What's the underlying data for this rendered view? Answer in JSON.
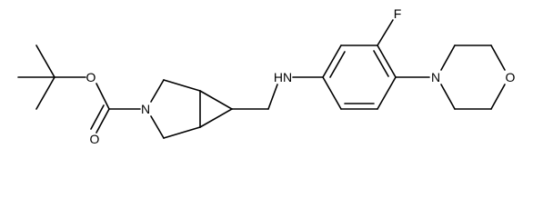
{
  "atoms": [
    {
      "label": "O"
    },
    {
      "label": "O"
    },
    {
      "label": "N"
    },
    {
      "label": "HN"
    },
    {
      "label": "F"
    },
    {
      "label": "N"
    },
    {
      "label": "O"
    }
  ]
}
